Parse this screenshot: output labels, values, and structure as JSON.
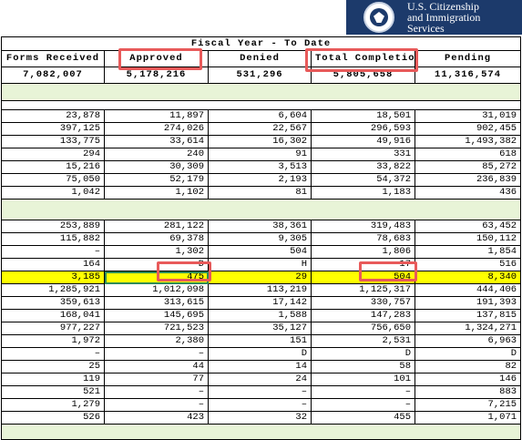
{
  "brand": {
    "line1": "U.S. Citizenship",
    "line2": "and Immigration",
    "line3": "Services",
    "navy": "#1c3a6b",
    "seal_icon": "dhs-seal-icon"
  },
  "table": {
    "period_title": "Fiscal Year - To Date",
    "columns": [
      "Forms Received",
      "Approved",
      "Denied",
      "Total Completions",
      "Pending"
    ],
    "totals": [
      "7,082,007",
      "5,178,216",
      "531,296",
      "5,805,658",
      "11,316,574"
    ],
    "group1": [
      [
        "23,878",
        "11,897",
        "6,604",
        "18,501",
        "31,019"
      ],
      [
        "397,125",
        "274,026",
        "22,567",
        "296,593",
        "902,455"
      ],
      [
        "133,775",
        "33,614",
        "16,302",
        "49,916",
        "1,493,382"
      ],
      [
        "294",
        "240",
        "91",
        "331",
        "618"
      ],
      [
        "15,216",
        "30,309",
        "3,513",
        "33,822",
        "85,272"
      ],
      [
        "75,050",
        "52,179",
        "2,193",
        "54,372",
        "236,839"
      ],
      [
        "1,042",
        "1,102",
        "81",
        "1,183",
        "436"
      ]
    ],
    "group2": [
      [
        "253,889",
        "281,122",
        "38,361",
        "319,483",
        "63,452"
      ],
      [
        "115,882",
        "69,378",
        "9,305",
        "78,683",
        "150,112"
      ],
      [
        "–",
        "1,302",
        "504",
        "1,806",
        "1,854"
      ],
      [
        "164",
        "D",
        "H",
        "17",
        "516"
      ],
      [
        "3,185",
        "475",
        "29",
        "504",
        "8,340"
      ],
      [
        "1,285,921",
        "1,012,098",
        "113,219",
        "1,125,317",
        "444,406"
      ],
      [
        "359,613",
        "313,615",
        "17,142",
        "330,757",
        "191,393"
      ],
      [
        "168,041",
        "145,695",
        "1,588",
        "147,283",
        "137,815"
      ],
      [
        "977,227",
        "721,523",
        "35,127",
        "756,650",
        "1,324,271"
      ],
      [
        "1,972",
        "2,380",
        "151",
        "2,531",
        "6,963"
      ],
      [
        "–",
        "–",
        "D",
        "D",
        "D"
      ],
      [
        "25",
        "44",
        "14",
        "58",
        "82"
      ],
      [
        "119",
        "77",
        "24",
        "101",
        "146"
      ],
      [
        "521",
        "–",
        "–",
        "–",
        "883"
      ],
      [
        "1,279",
        "–",
        "–",
        "–",
        "7,215"
      ],
      [
        "526",
        "423",
        "32",
        "455",
        "1,071"
      ]
    ],
    "highlight_color": "#ffff00",
    "band_color": "#e8f4d7",
    "annotation_color": "#e85a5a"
  }
}
